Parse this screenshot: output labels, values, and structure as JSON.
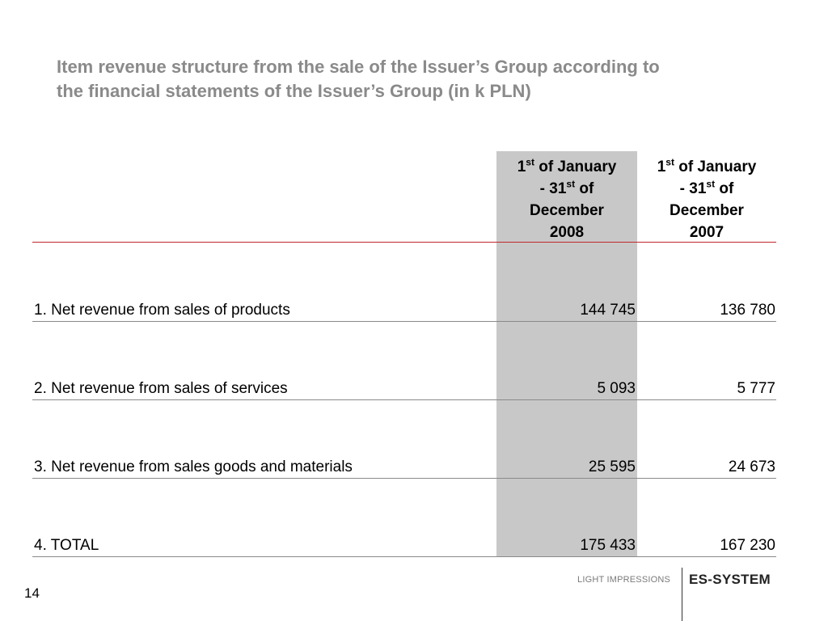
{
  "slide": {
    "title_line1": "Item revenue structure from the sale of the Issuer’s Group according to",
    "title_line2": "the financial statements of the Issuer’s Group (in k PLN)",
    "page_number": "14"
  },
  "table": {
    "columns": [
      {
        "day": "1",
        "day_suffix": "st",
        "mid": " of January",
        "line2_pre": "- 31",
        "line2_suffix": "st",
        "line2_post": " of",
        "line3": "December",
        "year": "2008",
        "highlighted": true
      },
      {
        "day": "1",
        "day_suffix": "st",
        "mid": " of January",
        "line2_pre": "- 31",
        "line2_suffix": "st",
        "line2_post": " of",
        "line3": "December",
        "year": "2007",
        "highlighted": false
      }
    ],
    "rows": [
      {
        "label": "1. Net revenue from sales of products",
        "v2008": "144 745",
        "v2007": "136 780"
      },
      {
        "label": "2. Net revenue from sales of services",
        "v2008": "5 093",
        "v2007": "5 777"
      },
      {
        "label": "3. Net revenue from sales goods and materials",
        "v2008": "25 595",
        "v2007": "24 673"
      },
      {
        "label": "4. TOTAL",
        "v2008": "175 433",
        "v2007": "167 230"
      }
    ]
  },
  "footer": {
    "tagline": "LIGHT IMPRESSIONS",
    "brand": "ES-SYSTEM"
  },
  "colors": {
    "title": "#8a8a8a",
    "highlight_column": "#c8c8c8",
    "header_rule": "#c0272d",
    "row_rule": "#8a8a8a"
  }
}
